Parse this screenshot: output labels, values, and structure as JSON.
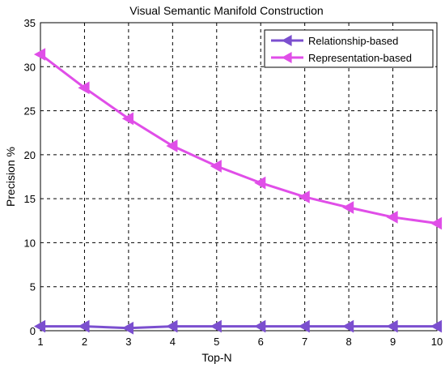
{
  "chart_data": {
    "type": "line",
    "title": "Visual Semantic Manifold Construction",
    "xlabel": "Top-N",
    "ylabel": "Precision %",
    "x": [
      1,
      2,
      3,
      4,
      5,
      6,
      7,
      8,
      9,
      10
    ],
    "xlim": [
      1,
      10
    ],
    "ylim": [
      0,
      35
    ],
    "xticks": [
      "1",
      "2",
      "3",
      "4",
      "5",
      "6",
      "7",
      "8",
      "9",
      "10"
    ],
    "yticks": [
      "0",
      "5",
      "10",
      "15",
      "20",
      "25",
      "30",
      "35"
    ],
    "grid": true,
    "legend_position": "top-right",
    "series": [
      {
        "name": "Relationship-based",
        "color": "#7b4fcf",
        "marker": "triangle-left",
        "values": [
          0.5,
          0.5,
          0.3,
          0.5,
          0.5,
          0.5,
          0.5,
          0.5,
          0.5,
          0.5
        ]
      },
      {
        "name": "Representation-based",
        "color": "#e04ee8",
        "marker": "triangle-left",
        "values": [
          31.4,
          27.6,
          24.1,
          21.0,
          18.7,
          16.8,
          15.2,
          14.0,
          12.9,
          12.2
        ]
      }
    ]
  }
}
